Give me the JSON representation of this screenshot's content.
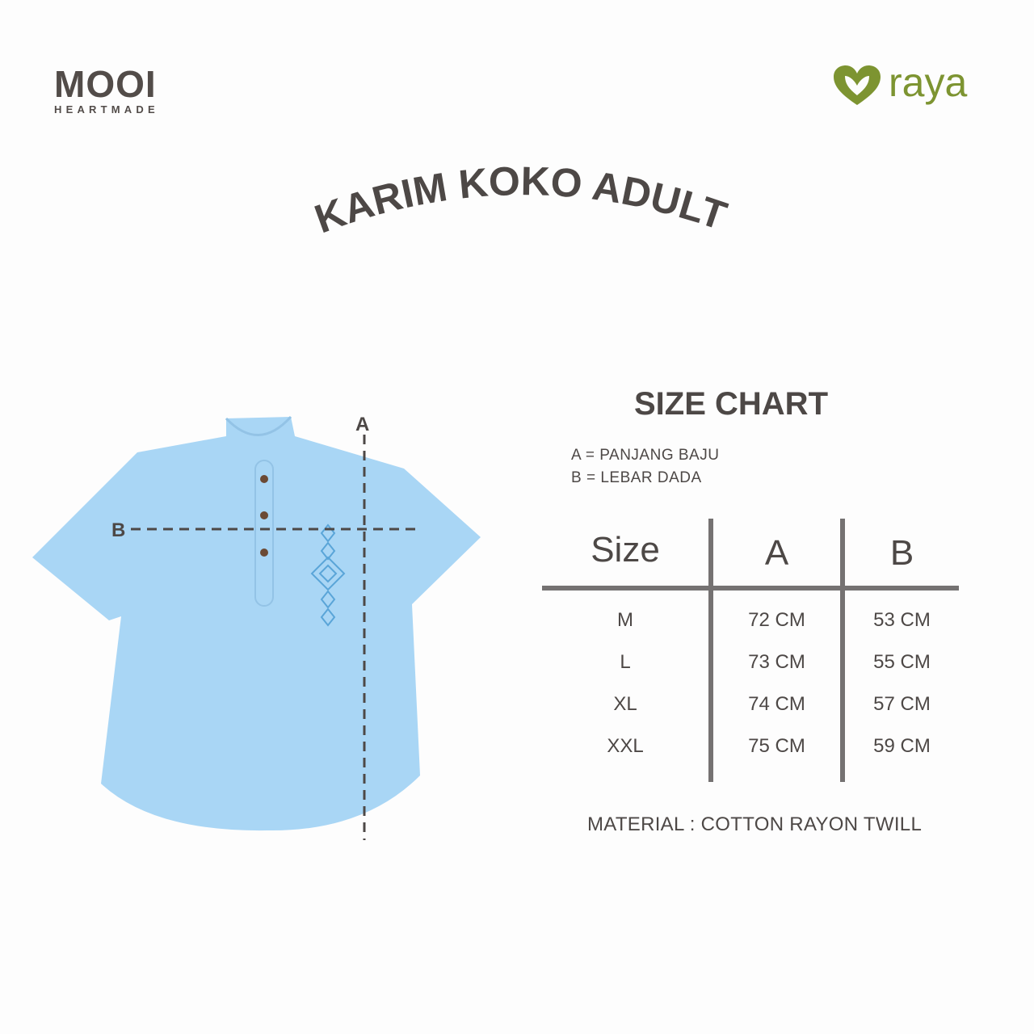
{
  "brands": {
    "left": {
      "name": "MOOI",
      "tagline": "HEARTMADE"
    },
    "right": {
      "name": "raya"
    }
  },
  "product_title": "KARIM KOKO ADULT",
  "size_chart": {
    "title": "SIZE CHART",
    "legend": [
      "A = PANJANG BAJU",
      "B = LEBAR DADA"
    ],
    "headers": [
      "Size",
      "A",
      "B"
    ],
    "rows": [
      [
        "M",
        "72 CM",
        "53 CM"
      ],
      [
        "L",
        "73 CM",
        "55 CM"
      ],
      [
        "XL",
        "74 CM",
        "57 CM"
      ],
      [
        "XXL",
        "75 CM",
        "59 CM"
      ]
    ]
  },
  "diagram": {
    "label_a": "A",
    "label_b": "B"
  },
  "material": "MATERIAL : COTTON RAYON TWILL",
  "colors": {
    "text": "#4d4846",
    "raya_green": "#7d9431",
    "shirt": "#a9d6f5",
    "table_lines": "#757272"
  }
}
